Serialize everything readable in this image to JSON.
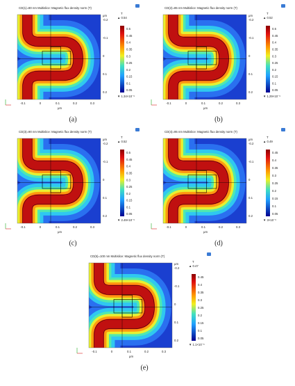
{
  "panels": [
    {
      "label": "(a)",
      "title": "CD(1)=80 nm   Multislice: Magnetic flux density norm (T)",
      "unit": "T",
      "max_label": "▲ 0.54",
      "min_label": "▼ 1.34×10⁻⁶",
      "colorbar_ticks": [
        "0.5",
        "0.45",
        "0.4",
        "0.35",
        "0.3",
        "0.25",
        "0.2",
        "0.15",
        "0.1",
        "0.05"
      ],
      "x_ticks": [
        "-0.1",
        "0",
        "0.1",
        "0.2",
        "0.3"
      ],
      "y_ticks": [
        "-0.2",
        "-0.1",
        "0",
        "0.1",
        "0.2"
      ],
      "x_axis_label": "μm",
      "y_axis_label": "μm"
    },
    {
      "label": "(b)",
      "title": "CD(2)=85 nm   Multislice: Magnetic flux density norm (T)",
      "unit": "T",
      "max_label": "▲ 0.52",
      "min_label": "▼ 1.29×10⁻⁶",
      "colorbar_ticks": [
        "0.5",
        "0.45",
        "0.4",
        "0.35",
        "0.3",
        "0.25",
        "0.2",
        "0.15",
        "0.1",
        "0.05"
      ],
      "x_ticks": [
        "-0.1",
        "0",
        "0.1",
        "0.2",
        "0.3"
      ],
      "y_ticks": [
        "-0.2",
        "-0.1",
        "0",
        "0.1",
        "0.2"
      ],
      "x_axis_label": "μm",
      "y_axis_label": "μm"
    },
    {
      "label": "(c)",
      "title": "CD(3)=90 nm   Multislice: Magnetic flux density norm (T)",
      "unit": "T",
      "max_label": "▲ 0.52",
      "min_label": "▼ 2.49×10⁻⁶",
      "colorbar_ticks": [
        "0.5",
        "0.45",
        "0.4",
        "0.35",
        "0.3",
        "0.25",
        "0.2",
        "0.15",
        "0.1",
        "0.05"
      ],
      "x_ticks": [
        "-0.1",
        "0",
        "0.1",
        "0.2",
        "0.3"
      ],
      "y_ticks": [
        "-0.2",
        "-0.1",
        "0",
        "0.1",
        "0.2"
      ],
      "x_axis_label": "μm",
      "y_axis_label": "μm"
    },
    {
      "label": "(d)",
      "title": "CD(4)=95 nm   Multislice: Magnetic flux density norm (T)",
      "unit": "T",
      "max_label": "▲ 0.49",
      "min_label": "▼ 3×10⁻⁶",
      "colorbar_ticks": [
        "0.45",
        "0.4",
        "0.35",
        "0.3",
        "0.25",
        "0.2",
        "0.15",
        "0.1",
        "0.05"
      ],
      "x_ticks": [
        "-0.1",
        "0",
        "0.1",
        "0.2",
        "0.3"
      ],
      "y_ticks": [
        "-0.2",
        "-0.1",
        "0",
        "0.1",
        "0.2"
      ],
      "x_axis_label": "μm",
      "y_axis_label": "μm"
    },
    {
      "label": "(e)",
      "title": "CD(5)=100 nm   Multislice: Magnetic flux density norm (T)",
      "unit": "T",
      "max_label": "▲ 0.47",
      "min_label": "▼ 1.1×10⁻⁶",
      "colorbar_ticks": [
        "0.45",
        "0.4",
        "0.35",
        "0.3",
        "0.25",
        "0.2",
        "0.15",
        "0.1",
        "0.05"
      ],
      "x_ticks": [
        "-0.1",
        "0",
        "0.1",
        "0.2",
        "0.3"
      ],
      "y_ticks": [
        "-0.2",
        "-0.1",
        "0",
        "0.1",
        "0.2"
      ],
      "x_axis_label": "μm",
      "y_axis_label": "μm"
    }
  ]
}
